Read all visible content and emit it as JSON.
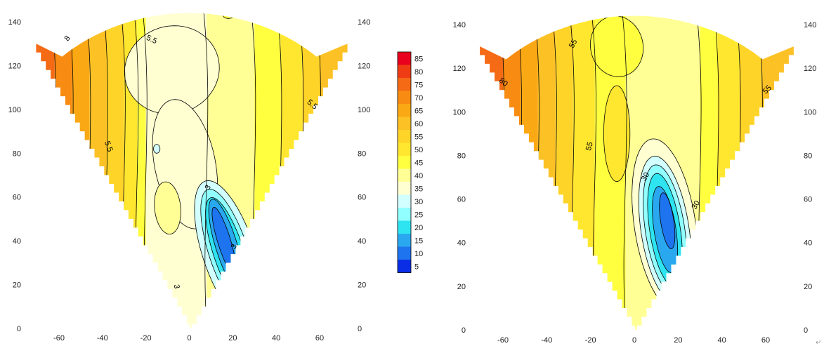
{
  "chart_data": [
    {
      "type": "heatmap",
      "title": "",
      "xlabel": "",
      "ylabel": "",
      "xlim": [
        -75,
        75
      ],
      "ylim": [
        0,
        145
      ],
      "x_ticks": [
        "-60",
        "-40",
        "-20",
        "0",
        "20",
        "40",
        "60"
      ],
      "y_ticks": [
        "0",
        "20",
        "40",
        "60",
        "80",
        "100",
        "120",
        "140"
      ],
      "contour_labels": [
        "8",
        "5.5",
        "5.5",
        "5.5",
        "3",
        "3",
        "3"
      ]
    },
    {
      "type": "heatmap",
      "title": "",
      "xlabel": "",
      "ylabel": "",
      "xlim": [
        -75,
        75
      ],
      "ylim": [
        0,
        145
      ],
      "x_ticks": [
        "-60",
        "-40",
        "-20",
        "0",
        "20",
        "40",
        "60"
      ],
      "y_ticks": [
        "0",
        "20",
        "40",
        "60",
        "80",
        "100",
        "120",
        "140"
      ],
      "contour_labels": [
        "55",
        "80",
        "55",
        "55",
        "30",
        "30"
      ]
    }
  ],
  "colorbar": {
    "levels": [
      "85",
      "80",
      "75",
      "70",
      "65",
      "60",
      "55",
      "50",
      "45",
      "40",
      "35",
      "30",
      "25",
      "20",
      "15",
      "10",
      "5"
    ],
    "colors": [
      "#e8001e",
      "#f03c14",
      "#f56a14",
      "#f88c12",
      "#fba815",
      "#fcc125",
      "#ffd429",
      "#ffe72f",
      "#ffff40",
      "#ffff96",
      "#ffffd2",
      "#d2ffff",
      "#91ffff",
      "#2ee4f0",
      "#2aa8ef",
      "#1e73ee",
      "#0a2de6"
    ]
  },
  "return_mark": "↵"
}
